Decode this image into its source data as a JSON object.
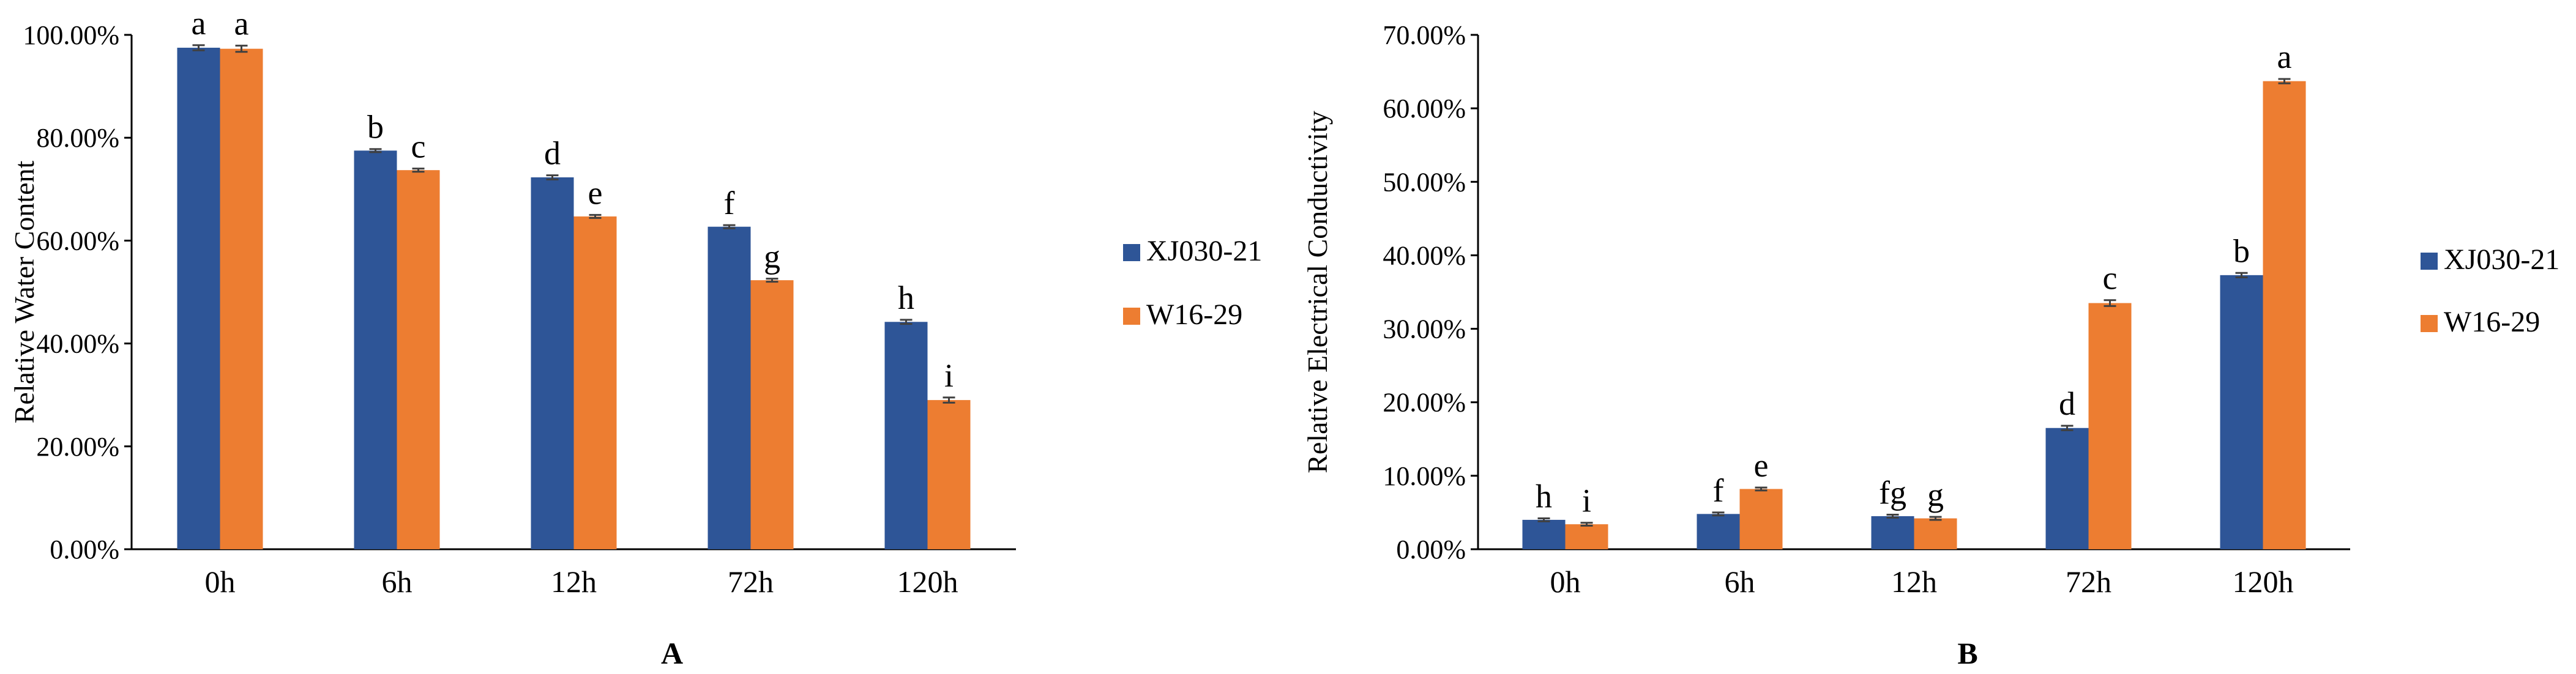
{
  "colors": {
    "series1": "#2E5597",
    "series2": "#ED7D31",
    "axis": "#000000",
    "errorbar": "#404040"
  },
  "chart_data": [
    {
      "type": "bar",
      "panel_label": "A",
      "ylabel": "Relative Water Content",
      "xlabel": "",
      "ylim": [
        0,
        1.0
      ],
      "yticks": [
        0,
        0.2,
        0.4,
        0.6,
        0.8,
        1.0
      ],
      "ytick_labels": [
        "0.00%",
        "20.00%",
        "40.00%",
        "60.00%",
        "80.00%",
        "100.00%"
      ],
      "grid": false,
      "legend_position": "right",
      "categories": [
        "0h",
        "6h",
        "12h",
        "72h",
        "120h"
      ],
      "series": [
        {
          "name": "XJ030-21",
          "values": [
            0.975,
            0.775,
            0.723,
            0.627,
            0.442
          ],
          "errors": [
            0.005,
            0.003,
            0.004,
            0.003,
            0.004
          ],
          "labels": [
            "a",
            "b",
            "d",
            "f",
            "h"
          ]
        },
        {
          "name": "W16-29",
          "values": [
            0.973,
            0.737,
            0.647,
            0.523,
            0.29
          ],
          "errors": [
            0.006,
            0.003,
            0.003,
            0.003,
            0.005
          ],
          "labels": [
            "a",
            "c",
            "e",
            "g",
            "i"
          ]
        }
      ]
    },
    {
      "type": "bar",
      "panel_label": "B",
      "ylabel": "Relative Electrical Conductivity",
      "xlabel": "",
      "ylim": [
        0,
        0.7
      ],
      "yticks": [
        0,
        0.1,
        0.2,
        0.3,
        0.4,
        0.5,
        0.6,
        0.7
      ],
      "ytick_labels": [
        "0.00%",
        "10.00%",
        "20.00%",
        "30.00%",
        "40.00%",
        "50.00%",
        "60.00%",
        "70.00%"
      ],
      "grid": false,
      "legend_position": "right",
      "categories": [
        "0h",
        "6h",
        "12h",
        "72h",
        "120h"
      ],
      "series": [
        {
          "name": "XJ030-21",
          "values": [
            0.04,
            0.048,
            0.045,
            0.165,
            0.373
          ],
          "errors": [
            0.002,
            0.002,
            0.002,
            0.003,
            0.003
          ],
          "labels": [
            "h",
            "f",
            "fg",
            "d",
            "b"
          ]
        },
        {
          "name": "W16-29",
          "values": [
            0.034,
            0.082,
            0.042,
            0.335,
            0.637
          ],
          "errors": [
            0.002,
            0.002,
            0.002,
            0.004,
            0.003
          ],
          "labels": [
            "i",
            "e",
            "g",
            "c",
            "a"
          ]
        }
      ]
    }
  ]
}
